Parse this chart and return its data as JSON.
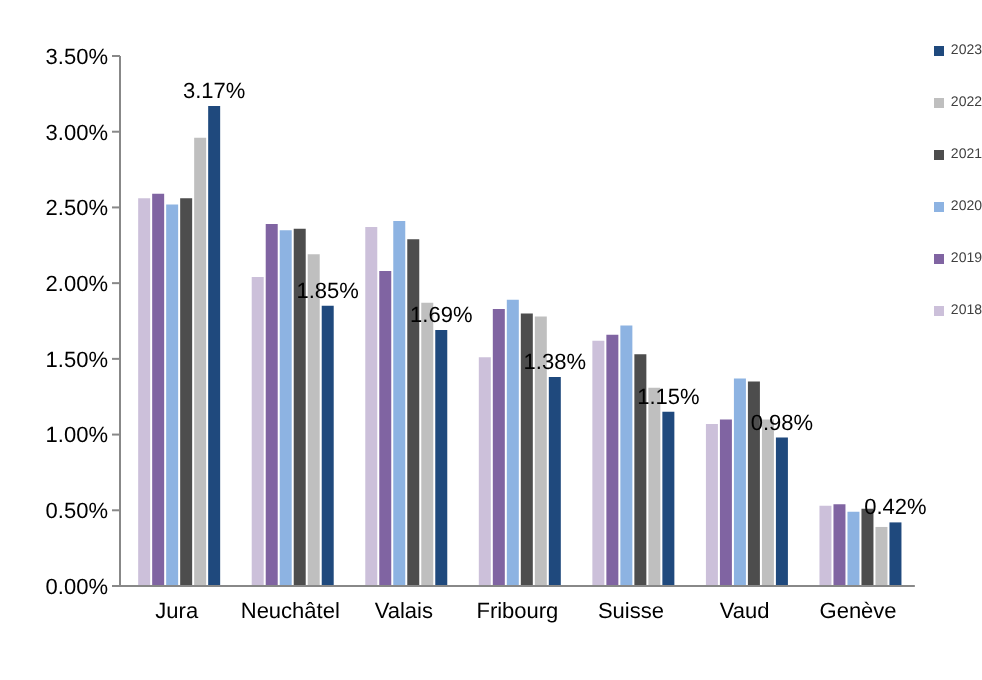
{
  "chart_data": {
    "type": "bar",
    "categories": [
      "Jura",
      "Neuchâtel",
      "Valais",
      "Fribourg",
      "Suisse",
      "Vaud",
      "Genève"
    ],
    "series": [
      {
        "name": "2018",
        "color": "#ccc0da",
        "values": [
          2.56,
          2.04,
          2.37,
          1.51,
          1.62,
          1.07,
          0.53
        ]
      },
      {
        "name": "2019",
        "color": "#8064a2",
        "values": [
          2.59,
          2.39,
          2.08,
          1.83,
          1.66,
          1.1,
          0.54
        ]
      },
      {
        "name": "2020",
        "color": "#8db3e2",
        "values": [
          2.52,
          2.35,
          2.41,
          1.89,
          1.72,
          1.37,
          0.49
        ]
      },
      {
        "name": "2021",
        "color": "#4d4d4d",
        "values": [
          2.56,
          2.36,
          2.29,
          1.8,
          1.53,
          1.35,
          0.51
        ]
      },
      {
        "name": "2022",
        "color": "#bfbfbf",
        "values": [
          2.96,
          2.19,
          1.87,
          1.78,
          1.31,
          1.1,
          0.39
        ]
      },
      {
        "name": "2023",
        "color": "#1f497d",
        "values": [
          3.17,
          1.85,
          1.69,
          1.38,
          1.15,
          0.98,
          0.42
        ],
        "value_labels": [
          "3.17%",
          "1.85%",
          "1.69%",
          "1.38%",
          "1.15%",
          "0.98%",
          "0.42%"
        ]
      }
    ],
    "ylim": [
      0,
      3.5
    ],
    "yticks": [
      {
        "value": 0,
        "label": "0.00%"
      },
      {
        "value": 0.5,
        "label": "0.50%"
      },
      {
        "value": 1,
        "label": "1.00%"
      },
      {
        "value": 1.5,
        "label": "1.50%"
      },
      {
        "value": 2,
        "label": "2.00%"
      },
      {
        "value": 2.5,
        "label": "2.50%"
      },
      {
        "value": 3,
        "label": "3.00%"
      },
      {
        "value": 3.5,
        "label": "3.50%"
      }
    ],
    "grid": false,
    "legend": "right"
  }
}
